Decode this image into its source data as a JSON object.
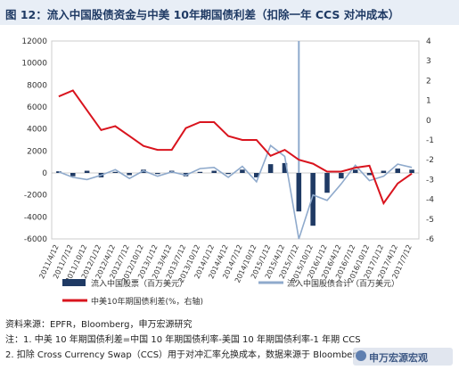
{
  "title": "图 12：流入中国股债资金与中美 10年期国债利差（扣除一年 CCS 对冲成本）",
  "notes": {
    "source": "资料来源：EPFR，Bloomberg，申万宏源研究",
    "note1": "注：1. 中美 10 年期国债利差=中国 10 年期国债利率-美国 10 年期国债利率-1 年期 CCS",
    "note2": "2. 扣除 Cross Currency Swap（CCS）用于对冲汇率允换成本，数据来源于 Bloomberg"
  },
  "watermark": "申万宏源宏观",
  "colors": {
    "equity": "#1f3a64",
    "bond": "#8faacc",
    "spread": "#d9141e",
    "title_bg": "#e8eef6"
  },
  "chart_data": {
    "type": "bar+line",
    "categories": [
      "2011/4/12",
      "2011/7/12",
      "2011/10/12",
      "2012/1/12",
      "2012/4/12",
      "2012/7/12",
      "2012/10/12",
      "2013/1/12",
      "2013/4/12",
      "2013/7/12",
      "2013/10/12",
      "2014/1/12",
      "2014/4/12",
      "2014/7/12",
      "2014/10/12",
      "2015/1/12",
      "2015/4/12",
      "2015/7/12",
      "2015/10/12",
      "2016/1/12",
      "2016/4/12",
      "2016/7/12",
      "2016/10/12",
      "2017/1/12",
      "2017/4/12",
      "2017/7/12"
    ],
    "left_axis": {
      "ticks": [
        "-6000",
        "-4000",
        "-2000",
        "0",
        "2000",
        "4000",
        "6000",
        "8000",
        "10000",
        "12000"
      ],
      "ylim": [
        -6000,
        12000
      ]
    },
    "right_axis": {
      "ticks": [
        "-6",
        "-5",
        "-4",
        "-3",
        "-2",
        "-1",
        "0",
        "1",
        "2",
        "3",
        "4"
      ],
      "ylim": [
        -6,
        4
      ]
    },
    "series": [
      {
        "name": "流入中国股票（百万美元）",
        "type": "bar",
        "axis": "left",
        "values": [
          150,
          -300,
          200,
          -400,
          100,
          -200,
          300,
          -100,
          200,
          -300,
          100,
          200,
          -100,
          300,
          -400,
          800,
          900,
          -3500,
          -4800,
          -1800,
          -500,
          300,
          -200,
          200,
          400,
          300
        ]
      },
      {
        "name": "流入中国股债合计（百万美元）",
        "type": "line",
        "axis": "left",
        "values": [
          100,
          -400,
          -600,
          -200,
          300,
          -500,
          200,
          -300,
          100,
          -200,
          400,
          500,
          -400,
          600,
          -800,
          2500,
          1500,
          -6000,
          -2000,
          -2500,
          -1000,
          700,
          -700,
          -300,
          800,
          500
        ]
      },
      {
        "name": "中美10年期国债利差(%，右轴)",
        "type": "line",
        "axis": "right",
        "values": [
          1.2,
          1.5,
          0.5,
          -0.5,
          -0.3,
          -0.8,
          -1.3,
          -1.5,
          -1.5,
          -0.4,
          -0.1,
          -0.1,
          -0.8,
          -1.0,
          -1.0,
          -1.8,
          -1.5,
          -2.0,
          -2.2,
          -2.6,
          -2.6,
          -2.4,
          -2.3,
          -4.2,
          -3.2,
          -2.7
        ]
      }
    ],
    "spikes": [
      {
        "series_index": 1,
        "category": "2015/7/12",
        "value": 12000
      }
    ],
    "legend": {
      "placement": "bottom"
    }
  }
}
